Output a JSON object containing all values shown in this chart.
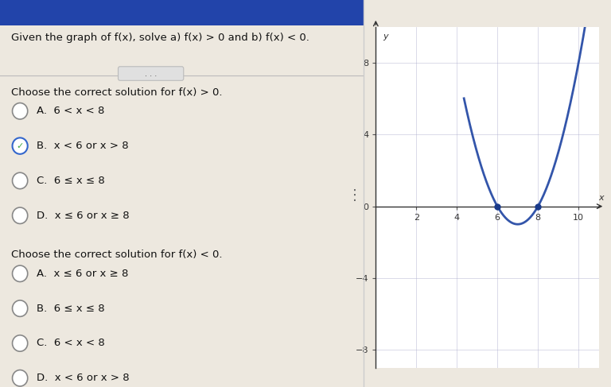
{
  "title_text": "Given the graph of f(x), solve a) f(x) > 0 and b) f(x) < 0.",
  "section1_header": "Choose the correct solution for f(x) > 0.",
  "section1_options": [
    "A.  6 < x < 8",
    "B.  x < 6 or x > 8",
    "C.  6 ≤ x ≤ 8",
    "D.  x ≤ 6 or x ≥ 8"
  ],
  "section1_selected": 1,
  "section2_header": "Choose the correct solution for f(x) < 0.",
  "section2_options": [
    "A.  x ≤ 6 or x ≥ 8",
    "B.  6 ≤ x ≤ 8",
    "C.  6 < x < 8",
    "D.  x < 6 or x > 8"
  ],
  "section2_selected": -1,
  "graph_xlim": [
    0,
    11
  ],
  "graph_ylim": [
    -9,
    10
  ],
  "graph_xticks": [
    2,
    4,
    6,
    8,
    10
  ],
  "graph_yticks": [
    -8,
    -4,
    0,
    4,
    8
  ],
  "graph_xlabel": "x",
  "graph_ylabel": "y",
  "curve_color": "#3355aa",
  "dot_color": "#1a3a8a",
  "zeros": [
    6,
    8
  ],
  "background_left": "#ede8df",
  "background_right": "#e5e8ef",
  "header_bg": "#2244aa",
  "grid_color": "#aaaacc",
  "text_color": "#111111",
  "selected_check_color": "#44aa44",
  "radio_color": "#888888",
  "divider_color": "#bbbbbb"
}
